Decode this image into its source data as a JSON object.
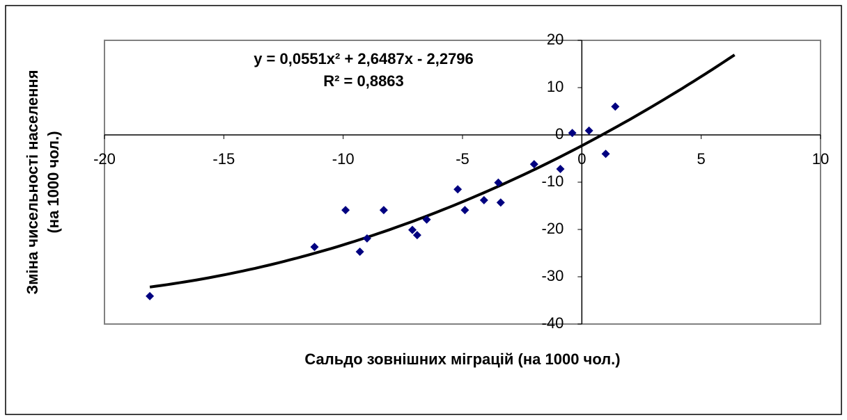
{
  "chart_data": {
    "type": "scatter",
    "x_label": "Сальдо зовнішних міграцій (на 1000 чол.)",
    "y_label": [
      "Зміна чисельності населення",
      "(на 1000 чол.)"
    ],
    "annotations": [
      "y = 0,0551x² + 2,6487x - 2,2796",
      "R² = 0,8863"
    ],
    "x": [
      -18.1,
      -11.2,
      -9.9,
      -9.3,
      -9.0,
      -8.3,
      -7.1,
      -6.9,
      -6.5,
      -5.2,
      -4.9,
      -4.1,
      -3.5,
      -3.4,
      -2.0,
      -0.9,
      -0.4,
      0.3,
      1.0,
      1.4
    ],
    "values": [
      -34.1,
      -23.7,
      -15.9,
      -24.7,
      -21.9,
      -15.9,
      -20.1,
      -21.2,
      -17.9,
      -11.5,
      -15.9,
      -13.8,
      -10.1,
      -14.3,
      -6.2,
      -7.2,
      0.4,
      0.9,
      -4.0,
      6.0
    ],
    "color": "#000080",
    "trendline": {
      "coefficients": [
        0.0551,
        2.6487,
        -2.2796
      ],
      "x_range": [
        -18.1,
        6.4
      ],
      "color": "#000000"
    },
    "xlim": [
      -20,
      10
    ],
    "ylim": [
      -40,
      20
    ],
    "xticks": [
      -20,
      -15,
      -10,
      -5,
      0,
      5,
      10
    ],
    "yticks": [
      -40,
      -30,
      -20,
      -10,
      0,
      10,
      20
    ],
    "axis_cross": [
      0,
      0
    ],
    "grid": false
  }
}
